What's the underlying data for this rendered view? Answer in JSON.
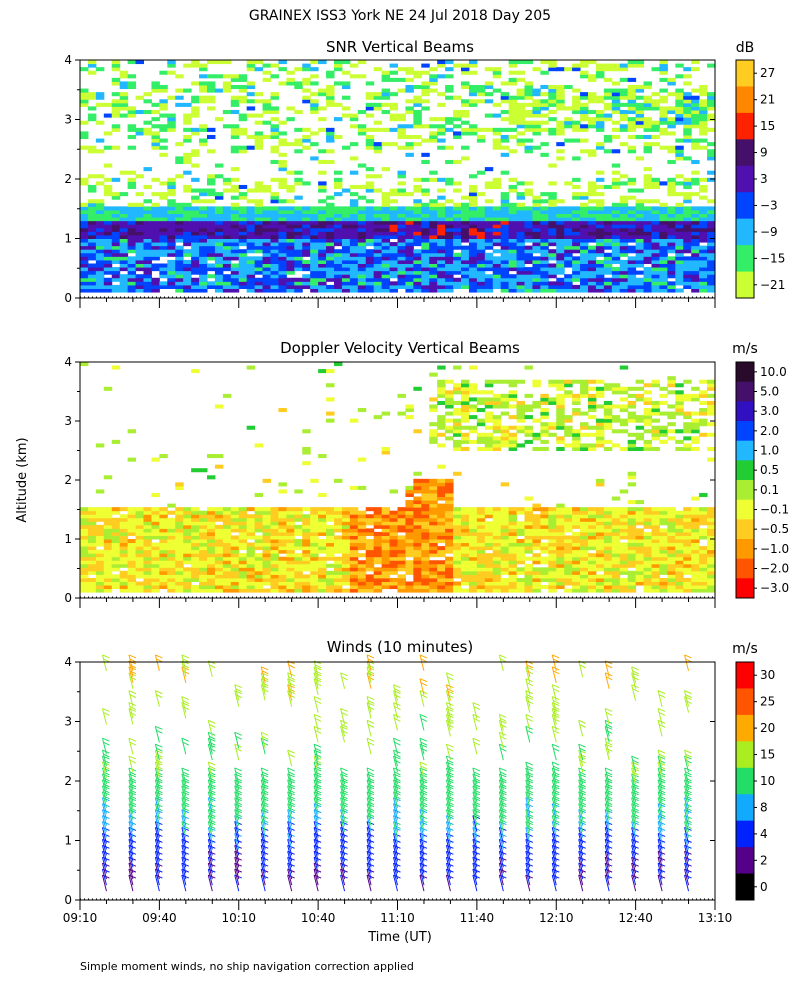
{
  "figure": {
    "title": "GRAINEX ISS3 York NE  24 Jul 2018 Day 205",
    "ylabel": "Altitude (km)",
    "xlabel": "Time (UT)",
    "footnote": "Simple moment winds, no ship navigation correction applied"
  },
  "chart_data": [
    {
      "type": "heatmap",
      "title": "SNR Vertical Beams",
      "colorbar_unit": "dB",
      "colorbar_ticks": [
        "27",
        "21",
        "15",
        "9",
        "3",
        "−3",
        "−9",
        "−15",
        "−21"
      ],
      "colorbar_colors": [
        "#ffcc22",
        "#ff8800",
        "#ff2200",
        "#44106a",
        "#5010b0",
        "#0044ff",
        "#22b8ff",
        "#33ee66",
        "#ccff33"
      ],
      "x_ticks": [
        "09:10",
        "09:40",
        "10:10",
        "10:40",
        "11:10",
        "11:40",
        "12:10",
        "12:40",
        "13:10"
      ],
      "y_ticks": [
        "0",
        "1",
        "2",
        "3",
        "4"
      ],
      "ylim": [
        0,
        4
      ],
      "xlim": [
        "09:10",
        "13:10"
      ],
      "approx_layers": [
        {
          "alt_range_km": [
            0.1,
            1.0
          ],
          "value_db": -6,
          "note": "strong return"
        },
        {
          "alt_range_km": [
            1.0,
            1.3
          ],
          "value_db": 4,
          "note": "bright layer, peaks near 11:10-11:50"
        },
        {
          "alt_range_km": [
            1.3,
            1.5
          ],
          "value_db": -12
        },
        {
          "alt_range_km": [
            1.5,
            4.0
          ],
          "value_db": -18,
          "note": "patchy"
        }
      ]
    },
    {
      "type": "heatmap",
      "title": "Doppler Velocity Vertical Beams",
      "colorbar_unit": "m/s",
      "colorbar_ticks": [
        "10.0",
        "5.0",
        "3.0",
        "2.0",
        "1.0",
        "0.5",
        "0.1",
        "−0.1",
        "−0.5",
        "−1.0",
        "−2.0",
        "−3.0"
      ],
      "colorbar_colors": [
        "#2a0a2a",
        "#44106a",
        "#3010c0",
        "#0044ff",
        "#22b8ff",
        "#22cc33",
        "#aaee33",
        "#eeff33",
        "#ffcc22",
        "#ff9900",
        "#ff5500",
        "#ff0000"
      ],
      "x_ticks": [
        "09:10",
        "09:40",
        "10:10",
        "10:40",
        "11:10",
        "11:40",
        "12:10",
        "12:40",
        "13:10"
      ],
      "y_ticks": [
        "0",
        "1",
        "2",
        "3",
        "4"
      ],
      "ylim": [
        0,
        4
      ],
      "xlim": [
        "09:10",
        "13:10"
      ],
      "approx_layers": [
        {
          "alt_range_km": [
            0.1,
            1.5
          ],
          "value_ms": -0.3,
          "note": "boundary layer, downward motion"
        },
        {
          "alt_range_km": [
            0.1,
            2.0
          ],
          "value_ms": -2.0,
          "note": "plume near 11:10-11:20"
        },
        {
          "alt_range_km": [
            2.5,
            3.7
          ],
          "value_ms": 0.1,
          "note": "patchy after 11:20"
        }
      ]
    },
    {
      "type": "scatter",
      "title": "Winds (10 minutes)",
      "colorbar_unit": "m/s",
      "colorbar_ticks": [
        "30",
        "25",
        "20",
        "15",
        "10",
        "8",
        "4",
        "2",
        "0"
      ],
      "colorbar_colors": [
        "#ff0000",
        "#ff5500",
        "#ffaa00",
        "#aaee22",
        "#22dd66",
        "#11aaff",
        "#0022ff",
        "#550088",
        "#000000"
      ],
      "x_ticks": [
        "09:10",
        "09:40",
        "10:10",
        "10:40",
        "11:10",
        "11:40",
        "12:10",
        "12:40",
        "13:10"
      ],
      "y_ticks": [
        "0",
        "1",
        "2",
        "3",
        "4"
      ],
      "ylim": [
        0,
        4
      ],
      "xlim": [
        "09:10",
        "13:10"
      ],
      "profile_times": [
        "09:20",
        "09:30",
        "09:40",
        "09:50",
        "10:00",
        "10:10",
        "10:20",
        "10:30",
        "10:40",
        "10:50",
        "11:00",
        "11:10",
        "11:20",
        "11:30",
        "11:40",
        "11:50",
        "12:00",
        "12:10",
        "12:20",
        "12:30",
        "12:40",
        "12:50",
        "13:00"
      ],
      "approx_speed_profile": [
        {
          "alt_km": 0.3,
          "speed_ms": 4
        },
        {
          "alt_km": 0.8,
          "speed_ms": 6
        },
        {
          "alt_km": 1.2,
          "speed_ms": 10
        },
        {
          "alt_km": 1.6,
          "speed_ms": 12
        },
        {
          "alt_km": 2.0,
          "speed_ms": 14
        },
        {
          "alt_km": 3.0,
          "speed_ms": 17
        },
        {
          "alt_km": 3.8,
          "speed_ms": 20
        }
      ]
    }
  ]
}
